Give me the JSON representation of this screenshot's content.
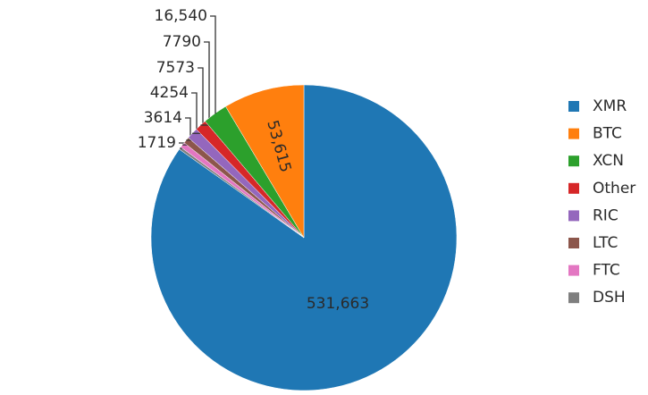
{
  "chart_data": {
    "type": "pie",
    "categories": [
      "XMR",
      "DSH",
      "FTC",
      "LTC",
      "RIC",
      "Other",
      "XCN",
      "BTC"
    ],
    "values": [
      531663,
      1719,
      3614,
      4254,
      7573,
      7790,
      16540,
      53615
    ],
    "value_labels": [
      "531,663",
      "1719",
      "3614",
      "4254",
      "7573",
      "7790",
      "16,540",
      "53,615"
    ],
    "colors": [
      "#1f77b4",
      "#7f7f7f",
      "#e377c2",
      "#8c564b",
      "#9467bd",
      "#d62728",
      "#2ca02c",
      "#ff7f0e"
    ],
    "legend_order": [
      0,
      7,
      6,
      5,
      4,
      3,
      2,
      1
    ]
  }
}
